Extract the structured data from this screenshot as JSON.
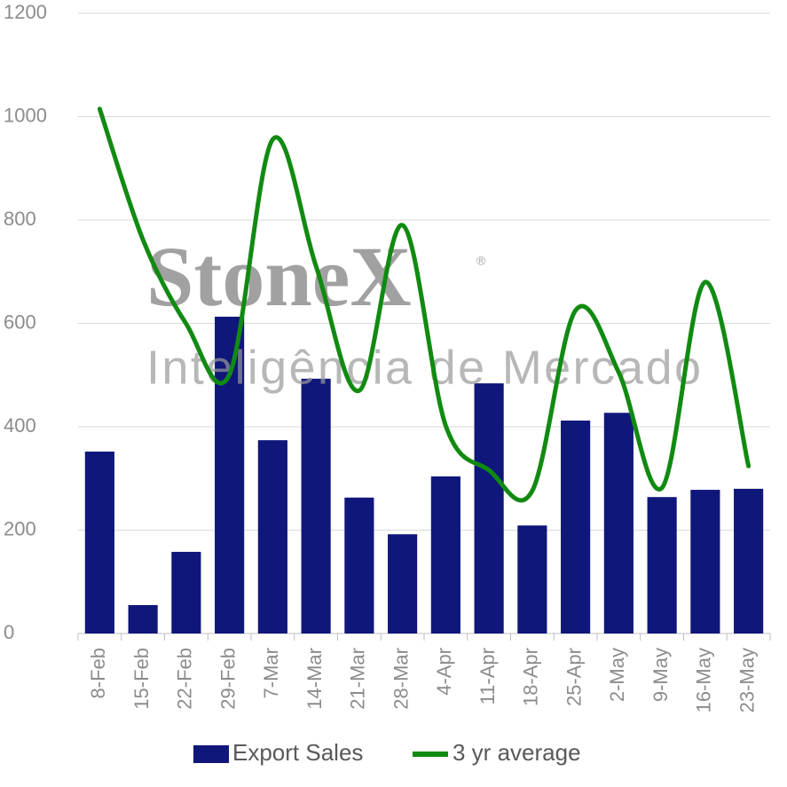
{
  "chart_data": {
    "type": "bar_line",
    "watermark": {
      "brand": "StoneX",
      "trademark": "®",
      "tagline": "Inteligência de Mercado"
    },
    "categories": [
      "8-Feb",
      "15-Feb",
      "22-Feb",
      "29-Feb",
      "7-Mar",
      "14-Mar",
      "21-Mar",
      "28-Mar",
      "4-Apr",
      "11-Apr",
      "18-Apr",
      "25-Apr",
      "2-May",
      "9-May",
      "16-May",
      "23-May"
    ],
    "series": [
      {
        "name": "Export Sales",
        "type": "bar",
        "color": "#0f177a",
        "values": [
          352,
          55,
          158,
          613,
          374,
          493,
          263,
          192,
          304,
          484,
          209,
          412,
          427,
          264,
          278,
          280
        ]
      },
      {
        "name": "3 yr average",
        "type": "line",
        "color": "#118a11",
        "values": [
          1015,
          762,
          599,
          501,
          956,
          711,
          470,
          790,
          402,
          316,
          276,
          625,
          505,
          282,
          680,
          324
        ]
      }
    ],
    "ylim": [
      0,
      1200
    ],
    "yticks": [
      0,
      200,
      400,
      600,
      800,
      1000,
      1200
    ],
    "grid": true,
    "legend": "bottom"
  }
}
